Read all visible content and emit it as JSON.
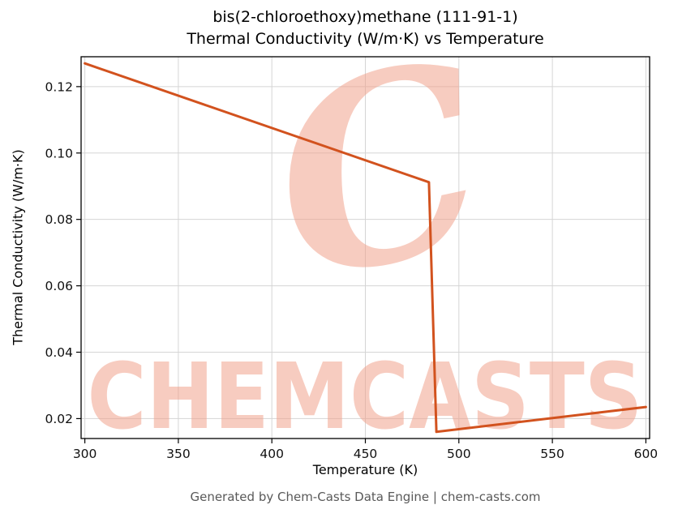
{
  "figure": {
    "title_line1": "bis(2-chloroethoxy)methane (111-91-1)",
    "title_line2": "Thermal Conductivity (W/m·K) vs Temperature",
    "footer": "Generated by Chem-Casts Data Engine | chem-casts.com"
  },
  "watermark": {
    "logo_letter": "C",
    "text": "CHEMCASTS",
    "color": "#f2a38d",
    "opacity": 0.55
  },
  "chart_data": {
    "type": "line",
    "title": "bis(2-chloroethoxy)methane (111-91-1) Thermal Conductivity (W/m·K) vs Temperature",
    "xlabel": "Temperature (K)",
    "ylabel": "Thermal Conductivity (W/m·K)",
    "xlim": [
      298,
      602
    ],
    "ylim": [
      0.014,
      0.129
    ],
    "xticks": [
      300,
      350,
      400,
      450,
      500,
      550,
      600
    ],
    "yticks": [
      0.02,
      0.04,
      0.06,
      0.08,
      0.1,
      0.12
    ],
    "grid": true,
    "grid_color": "#d5d5d5",
    "line_color": "#d2521e",
    "line_width": 3,
    "series": [
      {
        "name": "thermal-conductivity",
        "points": [
          [
            300,
            0.127
          ],
          [
            484,
            0.0912
          ],
          [
            488,
            0.016
          ],
          [
            600,
            0.0235
          ]
        ]
      }
    ]
  }
}
